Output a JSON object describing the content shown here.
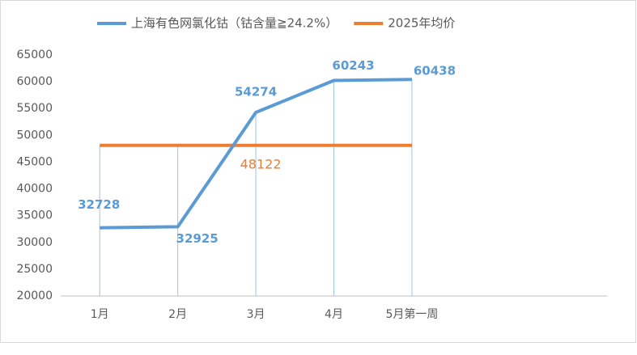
{
  "chart_data": {
    "type": "line",
    "categories": [
      "1月",
      "2月",
      "3月",
      "4月",
      "5月第一周",
      null,
      null
    ],
    "series": [
      {
        "name": "上海有色网氯化钴（钴含量≧24.2%）",
        "color": "#5b9bd5",
        "values": [
          32728,
          32925,
          54274,
          60243,
          60438,
          null,
          null
        ]
      },
      {
        "name": "2025年均价",
        "color": "#ed7d31",
        "values": [
          48122,
          48122,
          48122,
          48122,
          48122,
          null,
          null
        ]
      }
    ],
    "ylim": [
      20000,
      65000
    ],
    "yticks": [
      20000,
      25000,
      30000,
      35000,
      40000,
      45000,
      50000,
      55000,
      60000,
      65000
    ],
    "grid": false,
    "legend": "top"
  }
}
